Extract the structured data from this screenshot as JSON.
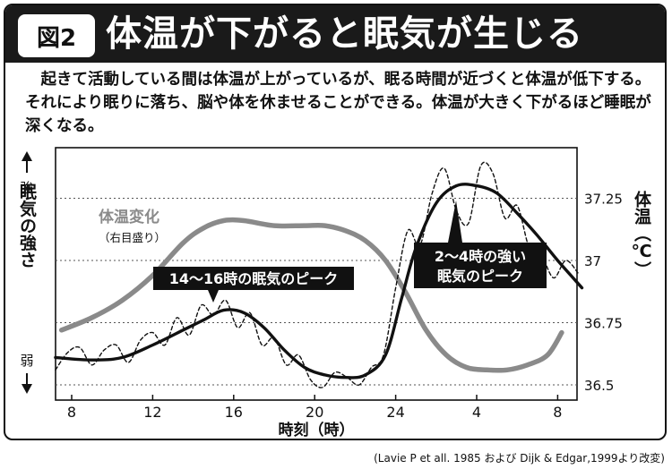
{
  "figure": {
    "badge": "図2",
    "title": "体温が下がると眠気が生じる",
    "caption": "起きて活動している間は体温が上がっているが、眠る時間が近づくと体温が低下する。それにより眠りに落ち、脳や体を休ませることができる。体温が大きく下がるほど睡眠が深くなる。",
    "source": "(Lavie P et all. 1985 および Dijk & Edgar,1999より改変)"
  },
  "chart_data": {
    "type": "line",
    "xlabel": "時刻（時）",
    "x_ticks": [
      "8",
      "12",
      "16",
      "20",
      "24",
      "4",
      "8"
    ],
    "y_left_label": "眠気の強さ",
    "y_left_top": "強",
    "y_left_bottom": "弱",
    "y_right_label": "体温（℃）",
    "y_right_ticks": [
      "37.25",
      "37",
      "36.75",
      "36.5"
    ],
    "ylim_right": [
      36.5,
      37.25
    ],
    "series": [
      {
        "name": "体温変化",
        "sublabel": "（右目盛り）",
        "color": "#8a8a8a",
        "x": [
          7.5,
          9,
          10.5,
          12,
          13.5,
          14.5,
          15.5,
          16.5,
          18,
          19.5,
          20.5,
          21.5,
          22.5,
          23.5,
          24.5,
          25.5,
          26.5,
          27.5,
          28.5,
          29.5,
          30.5,
          31.5,
          32.2
        ],
        "y": [
          36.72,
          36.77,
          36.84,
          36.94,
          37.07,
          37.13,
          37.16,
          37.16,
          37.14,
          37.14,
          37.14,
          37.12,
          37.08,
          37.0,
          36.87,
          36.72,
          36.62,
          36.57,
          36.56,
          36.56,
          36.58,
          36.62,
          36.71
        ]
      },
      {
        "name": "眠気",
        "color": "#111111",
        "x": [
          7.2,
          9,
          10.5,
          12,
          13.5,
          14.5,
          15.5,
          16.5,
          17.5,
          18.5,
          19.5,
          20.5,
          21.5,
          22.5,
          23.5,
          24.3,
          25,
          26,
          27,
          28,
          29,
          30,
          31,
          32,
          33.2
        ],
        "y": [
          36.61,
          36.6,
          36.61,
          36.66,
          36.72,
          36.76,
          36.8,
          36.79,
          36.73,
          36.64,
          36.57,
          36.54,
          36.53,
          36.54,
          36.62,
          36.85,
          37.05,
          37.23,
          37.3,
          37.3,
          37.27,
          37.19,
          37.1,
          37.0,
          36.89
        ]
      },
      {
        "name": "眠気（実測）",
        "color": "#111111",
        "dashed": true,
        "x": [
          7.2,
          7.8,
          8.4,
          9,
          9.6,
          10.2,
          10.8,
          11.4,
          12,
          12.6,
          13.2,
          13.8,
          14.4,
          15,
          15.6,
          16.2,
          16.8,
          17.4,
          18,
          18.6,
          19.2,
          19.8,
          20.4,
          21,
          21.6,
          22.2,
          22.8,
          23.4,
          24,
          24.6,
          25.2,
          25.8,
          26.4,
          27,
          27.6,
          28.2,
          28.8,
          29.4,
          30,
          30.6,
          31.2,
          31.8,
          32.4,
          33
        ],
        "y": [
          36.56,
          36.63,
          36.65,
          36.58,
          36.64,
          36.66,
          36.59,
          36.68,
          36.71,
          36.66,
          36.77,
          36.7,
          36.82,
          36.78,
          36.84,
          36.73,
          36.79,
          36.66,
          36.69,
          36.58,
          36.62,
          36.52,
          36.49,
          36.55,
          36.53,
          36.5,
          36.57,
          36.62,
          36.89,
          37.12,
          37.06,
          37.27,
          37.37,
          37.2,
          37.15,
          37.38,
          37.35,
          37.17,
          37.22,
          37.05,
          37.02,
          36.93,
          37.0,
          36.95
        ]
      }
    ],
    "annotations": [
      {
        "text": "14〜16時の眠気のピーク",
        "x": 15.5,
        "y": 36.8
      },
      {
        "text": "2〜4時の強い眠気のピーク",
        "x": 27.3,
        "y": 37.24
      }
    ],
    "grid": "dotted horizontal"
  }
}
